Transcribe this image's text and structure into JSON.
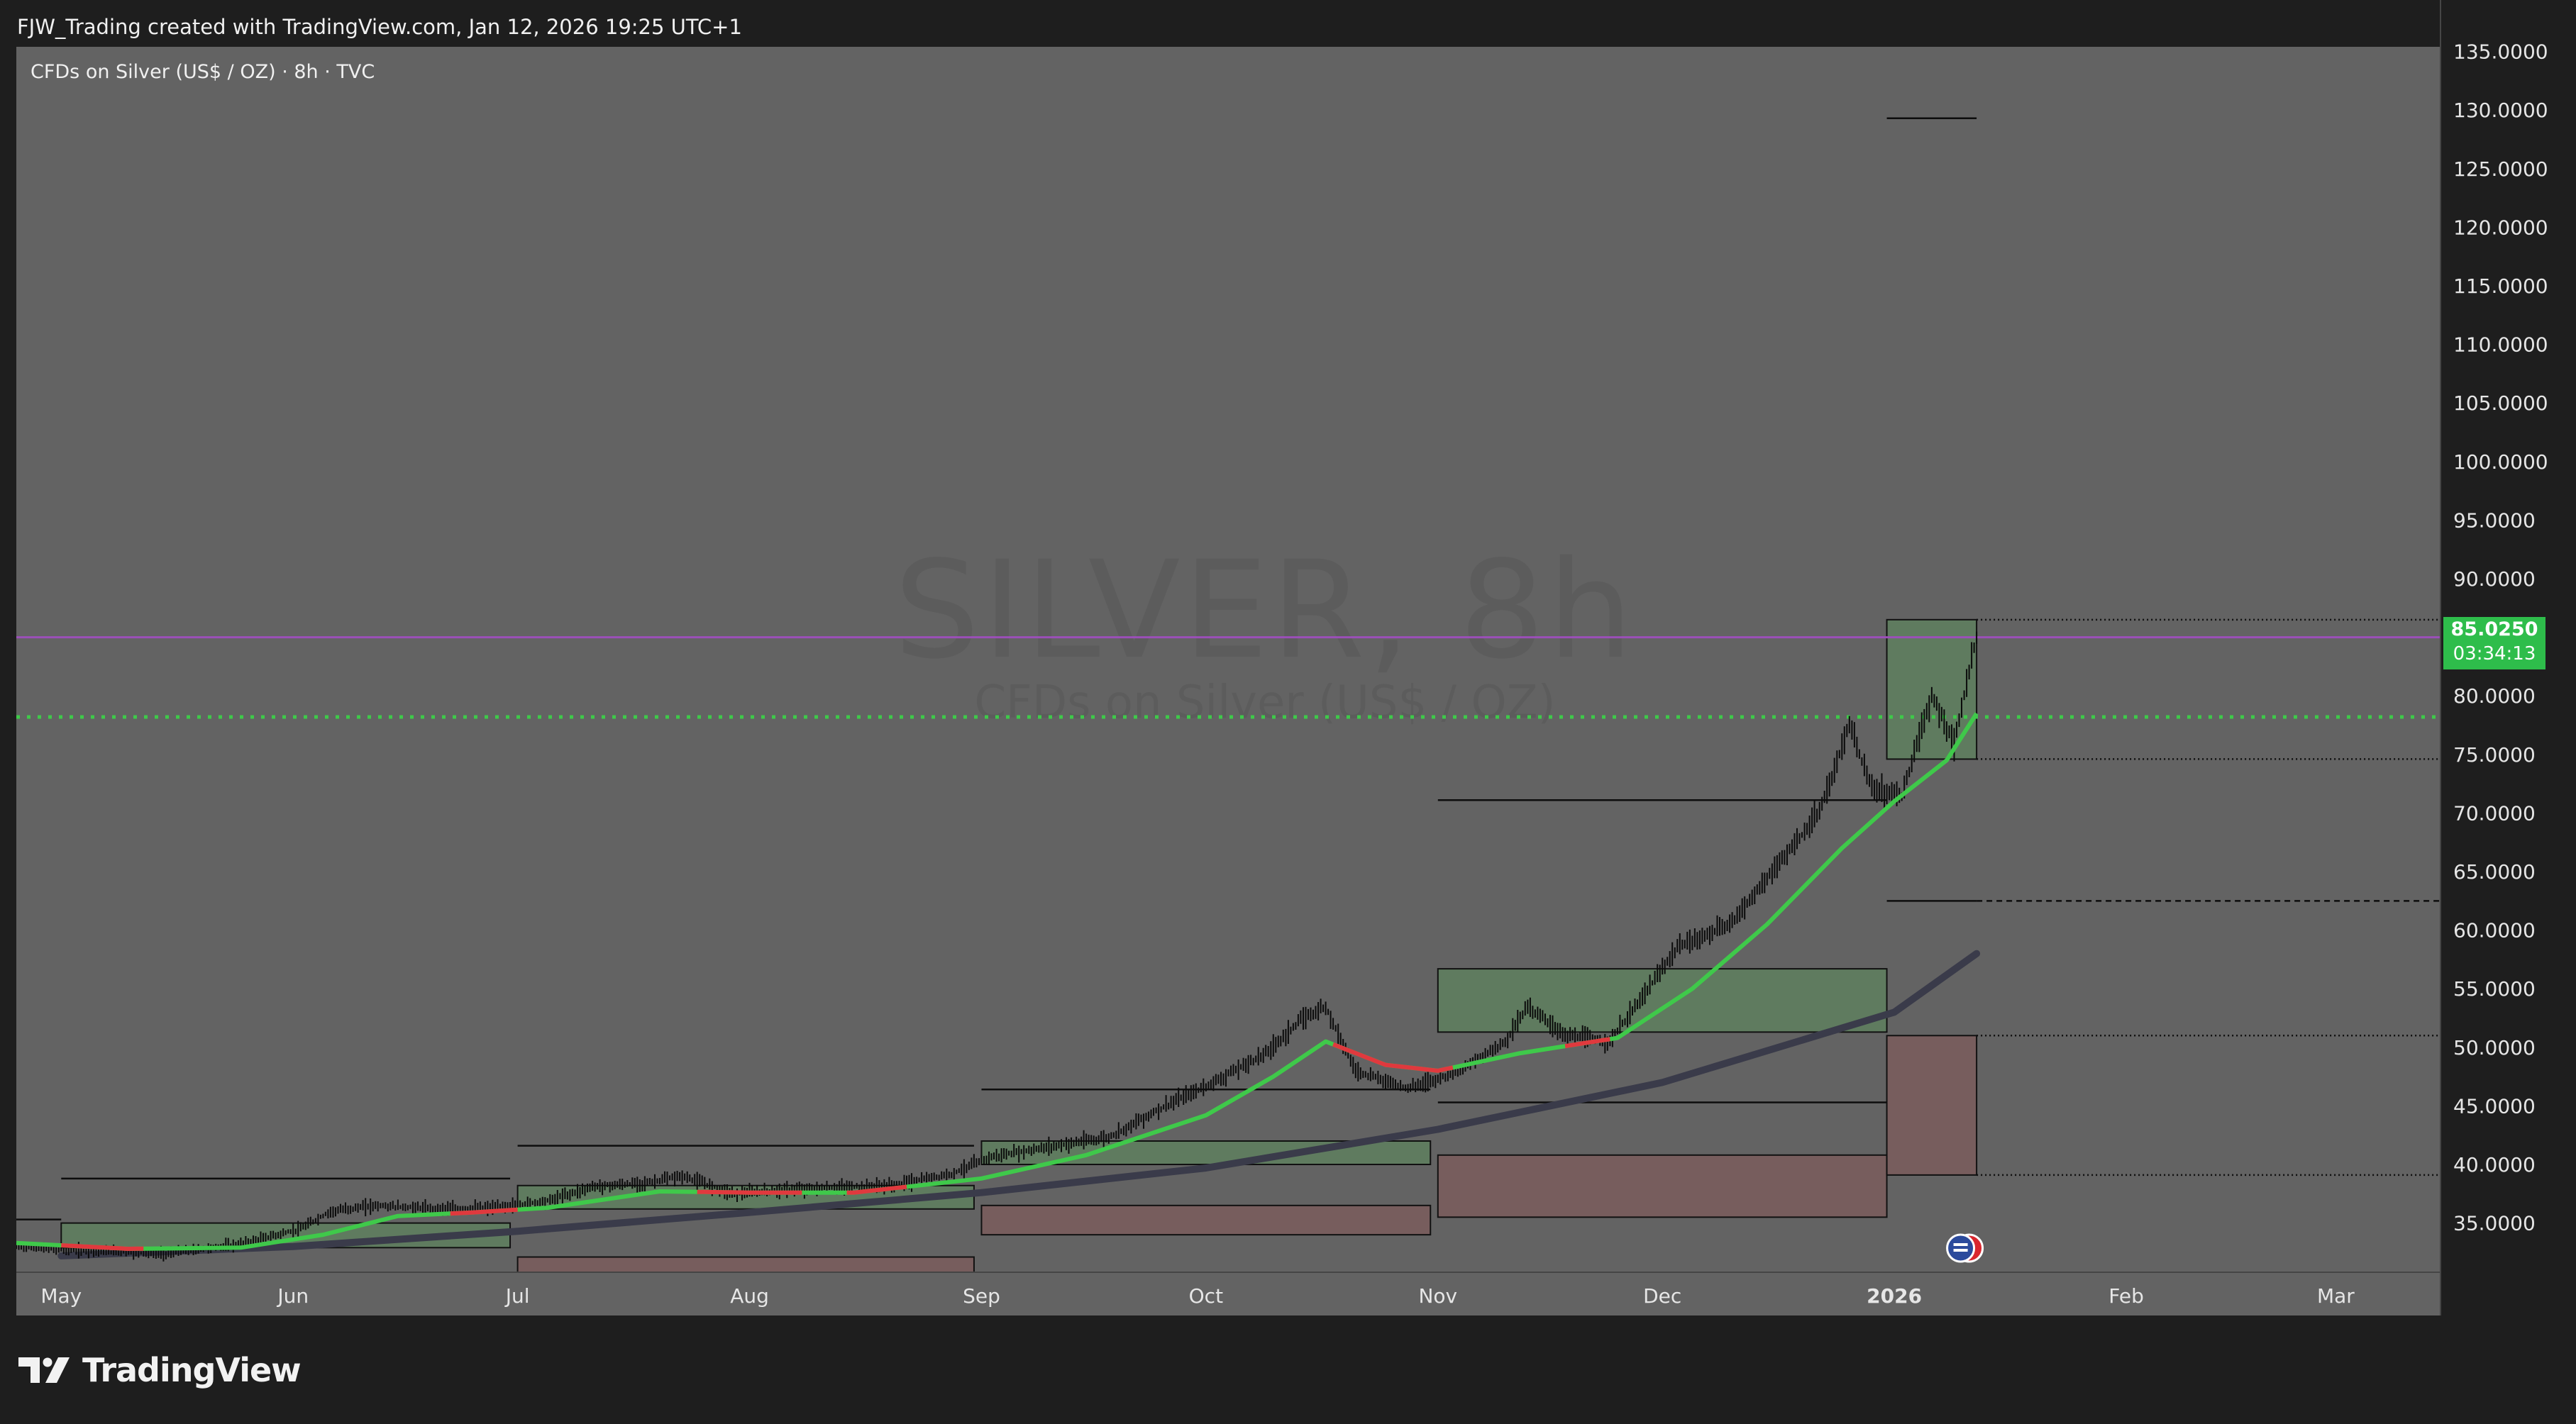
{
  "header": {
    "attribution": "FJW_Trading created with TradingView.com, Jan 12, 2026 19:25 UTC+1"
  },
  "symbol_label": "CFDs on Silver (US$ / OZ) · 8h · TVC",
  "watermark": {
    "title": "SILVER, 8h",
    "subtitle": "CFDs on Silver (US$ / OZ)"
  },
  "last_price": {
    "value": "85.0250",
    "countdown": "03:34:13",
    "price": 85.025
  },
  "footer": {
    "brand": "TradingView"
  },
  "colors": {
    "background": "#636363",
    "ema_up": "#3fc94a",
    "ema_down": "#e0393e",
    "slow_ma": "#3a3b4a",
    "purple_line": "#9b4fb8",
    "price_tag": "#2ebd4b",
    "green_zone": "#5e7f5e",
    "red_zone": "#7a5c5c"
  },
  "chart_data": {
    "type": "line",
    "title": "",
    "y_axis": {
      "min": 30.8,
      "max": 135.4,
      "ticks": [
        "135.0000",
        "130.0000",
        "125.0000",
        "120.0000",
        "115.0000",
        "110.0000",
        "105.0000",
        "100.0000",
        "95.0000",
        "90.0000",
        "85.0000",
        "80.0000",
        "75.0000",
        "70.0000",
        "65.0000",
        "60.0000",
        "55.0000",
        "50.0000",
        "45.0000",
        "40.0000",
        "35.0000"
      ],
      "tick_values": [
        135,
        130,
        125,
        120,
        115,
        110,
        105,
        100,
        95,
        90,
        85,
        80,
        75,
        70,
        65,
        60,
        55,
        50,
        45,
        40,
        35
      ],
      "position": "right"
    },
    "x_axis": {
      "start": "2025-04-25",
      "end": "2026-03-15",
      "ticks": [
        {
          "label": "May",
          "date": "2025-05-01"
        },
        {
          "label": "Jun",
          "date": "2025-06-01"
        },
        {
          "label": "Jul",
          "date": "2025-07-01"
        },
        {
          "label": "Aug",
          "date": "2025-08-01"
        },
        {
          "label": "Sep",
          "date": "2025-09-01"
        },
        {
          "label": "Oct",
          "date": "2025-10-01"
        },
        {
          "label": "Nov",
          "date": "2025-11-01"
        },
        {
          "label": "Dec",
          "date": "2025-12-01"
        },
        {
          "label": "2026",
          "date": "2026-01-01",
          "bold": true
        },
        {
          "label": "Feb",
          "date": "2026-02-01"
        },
        {
          "label": "Mar",
          "date": "2026-03-01"
        }
      ]
    },
    "series": [
      {
        "role": "price",
        "points": [
          [
            "2025-04-25",
            33.0
          ],
          [
            "2025-05-05",
            32.6
          ],
          [
            "2025-05-15",
            32.4
          ],
          [
            "2025-05-25",
            33.2
          ],
          [
            "2025-06-02",
            34.5
          ],
          [
            "2025-06-06",
            36.0
          ],
          [
            "2025-06-12",
            36.5
          ],
          [
            "2025-06-20",
            36.2
          ],
          [
            "2025-06-28",
            36.3
          ],
          [
            "2025-07-05",
            36.9
          ],
          [
            "2025-07-11",
            38.1
          ],
          [
            "2025-07-18",
            38.4
          ],
          [
            "2025-07-23",
            39.0
          ],
          [
            "2025-07-30",
            37.5
          ],
          [
            "2025-08-05",
            37.8
          ],
          [
            "2025-08-12",
            38.0
          ],
          [
            "2025-08-20",
            38.2
          ],
          [
            "2025-08-28",
            39.2
          ],
          [
            "2025-09-02",
            40.6
          ],
          [
            "2025-09-10",
            41.5
          ],
          [
            "2025-09-18",
            42.3
          ],
          [
            "2025-09-25",
            44.8
          ],
          [
            "2025-10-02",
            47.0
          ],
          [
            "2025-10-09",
            49.5
          ],
          [
            "2025-10-14",
            52.5
          ],
          [
            "2025-10-17",
            53.5
          ],
          [
            "2025-10-21",
            48.0
          ],
          [
            "2025-10-28",
            46.5
          ],
          [
            "2025-11-04",
            48.0
          ],
          [
            "2025-11-10",
            50.5
          ],
          [
            "2025-11-13",
            53.5
          ],
          [
            "2025-11-18",
            51.0
          ],
          [
            "2025-11-24",
            50.5
          ],
          [
            "2025-11-28",
            54.0
          ],
          [
            "2025-12-03",
            58.5
          ],
          [
            "2025-12-10",
            60.5
          ],
          [
            "2025-12-17",
            66.0
          ],
          [
            "2025-12-22",
            70.0
          ],
          [
            "2025-12-26",
            77.5
          ],
          [
            "2025-12-29",
            72.0
          ],
          [
            "2026-01-02",
            71.5
          ],
          [
            "2026-01-06",
            80.0
          ],
          [
            "2026-01-09",
            76.0
          ],
          [
            "2026-01-12",
            85.0
          ]
        ]
      },
      {
        "role": "fast_ema",
        "points": [
          [
            "2025-04-25",
            33.3
          ],
          [
            "2025-05-10",
            32.8
          ],
          [
            "2025-05-25",
            32.9
          ],
          [
            "2025-06-05",
            34.0
          ],
          [
            "2025-06-15",
            35.6
          ],
          [
            "2025-06-25",
            35.9
          ],
          [
            "2025-07-05",
            36.3
          ],
          [
            "2025-07-20",
            37.7
          ],
          [
            "2025-08-01",
            37.6
          ],
          [
            "2025-08-15",
            37.6
          ],
          [
            "2025-09-01",
            38.8
          ],
          [
            "2025-09-15",
            40.8
          ],
          [
            "2025-10-01",
            44.2
          ],
          [
            "2025-10-10",
            47.5
          ],
          [
            "2025-10-17",
            50.5
          ],
          [
            "2025-10-25",
            48.5
          ],
          [
            "2025-11-01",
            48.0
          ],
          [
            "2025-11-12",
            49.5
          ],
          [
            "2025-11-25",
            50.8
          ],
          [
            "2025-12-05",
            55.0
          ],
          [
            "2025-12-15",
            60.5
          ],
          [
            "2025-12-25",
            67.0
          ],
          [
            "2026-01-01",
            71.0
          ],
          [
            "2026-01-08",
            74.5
          ],
          [
            "2026-01-12",
            78.5
          ]
        ],
        "down_segments": [
          [
            "2025-05-01",
            "2025-05-12"
          ],
          [
            "2025-06-22",
            "2025-07-01"
          ],
          [
            "2025-07-25",
            "2025-08-08"
          ],
          [
            "2025-08-14",
            "2025-08-22"
          ],
          [
            "2025-10-18",
            "2025-11-03"
          ],
          [
            "2025-11-18",
            "2025-11-24"
          ]
        ]
      },
      {
        "role": "slow_ma",
        "points": [
          [
            "2025-05-01",
            32.2
          ],
          [
            "2025-06-01",
            33.0
          ],
          [
            "2025-07-01",
            34.3
          ],
          [
            "2025-08-01",
            35.9
          ],
          [
            "2025-09-01",
            37.6
          ],
          [
            "2025-10-01",
            39.7
          ],
          [
            "2025-11-01",
            43.0
          ],
          [
            "2025-12-01",
            47.0
          ],
          [
            "2026-01-01",
            53.0
          ],
          [
            "2026-01-12",
            58.0
          ]
        ]
      }
    ],
    "levels": [
      {
        "style": "solid",
        "price": 129.3,
        "from": "2025-12-31",
        "to": "2026-01-12"
      },
      {
        "style": "solid",
        "price": 38.8,
        "from": "2025-05-01",
        "to": "2025-06-30"
      },
      {
        "style": "solid",
        "price": 35.3,
        "from": "2025-04-25",
        "to": "2025-05-01"
      },
      {
        "style": "solid",
        "price": 41.6,
        "from": "2025-07-01",
        "to": "2025-08-31"
      },
      {
        "style": "solid",
        "price": 46.4,
        "from": "2025-09-01",
        "to": "2025-10-31"
      },
      {
        "style": "solid",
        "price": 71.1,
        "from": "2025-11-01",
        "to": "2025-12-31"
      },
      {
        "style": "solid",
        "price": 45.3,
        "from": "2025-11-01",
        "to": "2025-12-31"
      },
      {
        "style": "solid",
        "price": 62.5,
        "from": "2025-12-31",
        "to": "2026-01-12"
      },
      {
        "style": "dashed",
        "price": 62.5,
        "from": "2026-01-12",
        "to": "2026-03-15"
      },
      {
        "style": "dotted",
        "price": 86.5,
        "from": "2026-01-12",
        "to": "2026-03-15"
      },
      {
        "style": "dotted",
        "price": 74.6,
        "from": "2026-01-12",
        "to": "2026-03-15"
      },
      {
        "style": "dotted",
        "price": 51.0,
        "from": "2026-01-12",
        "to": "2026-03-15"
      },
      {
        "style": "dotted",
        "price": 39.1,
        "from": "2026-01-12",
        "to": "2026-03-15"
      }
    ],
    "zones": [
      {
        "kind": "green",
        "from": "2025-05-01",
        "to": "2025-06-30",
        "top": 35.0,
        "bottom": 32.9
      },
      {
        "kind": "green",
        "from": "2025-07-01",
        "to": "2025-08-31",
        "top": 38.2,
        "bottom": 36.2
      },
      {
        "kind": "red",
        "from": "2025-07-01",
        "to": "2025-08-31",
        "top": 32.1,
        "bottom": 30.8
      },
      {
        "kind": "green",
        "from": "2025-09-01",
        "to": "2025-10-31",
        "top": 42.0,
        "bottom": 40.0
      },
      {
        "kind": "red",
        "from": "2025-09-01",
        "to": "2025-10-31",
        "top": 36.5,
        "bottom": 34.0
      },
      {
        "kind": "green",
        "from": "2025-11-01",
        "to": "2025-12-31",
        "top": 56.7,
        "bottom": 51.3
      },
      {
        "kind": "red",
        "from": "2025-11-01",
        "to": "2025-12-31",
        "top": 40.8,
        "bottom": 35.5
      },
      {
        "kind": "green",
        "from": "2025-12-31",
        "to": "2026-01-12",
        "top": 86.5,
        "bottom": 74.6
      },
      {
        "kind": "red",
        "from": "2025-12-31",
        "to": "2026-01-12",
        "top": 51.0,
        "bottom": 39.1
      }
    ],
    "horizontal_lines": [
      {
        "style": "solid",
        "color": "purple",
        "price": 85.0
      },
      {
        "style": "dotted",
        "color": "green",
        "price": 78.2
      }
    ],
    "grid": false,
    "legend": "none"
  }
}
